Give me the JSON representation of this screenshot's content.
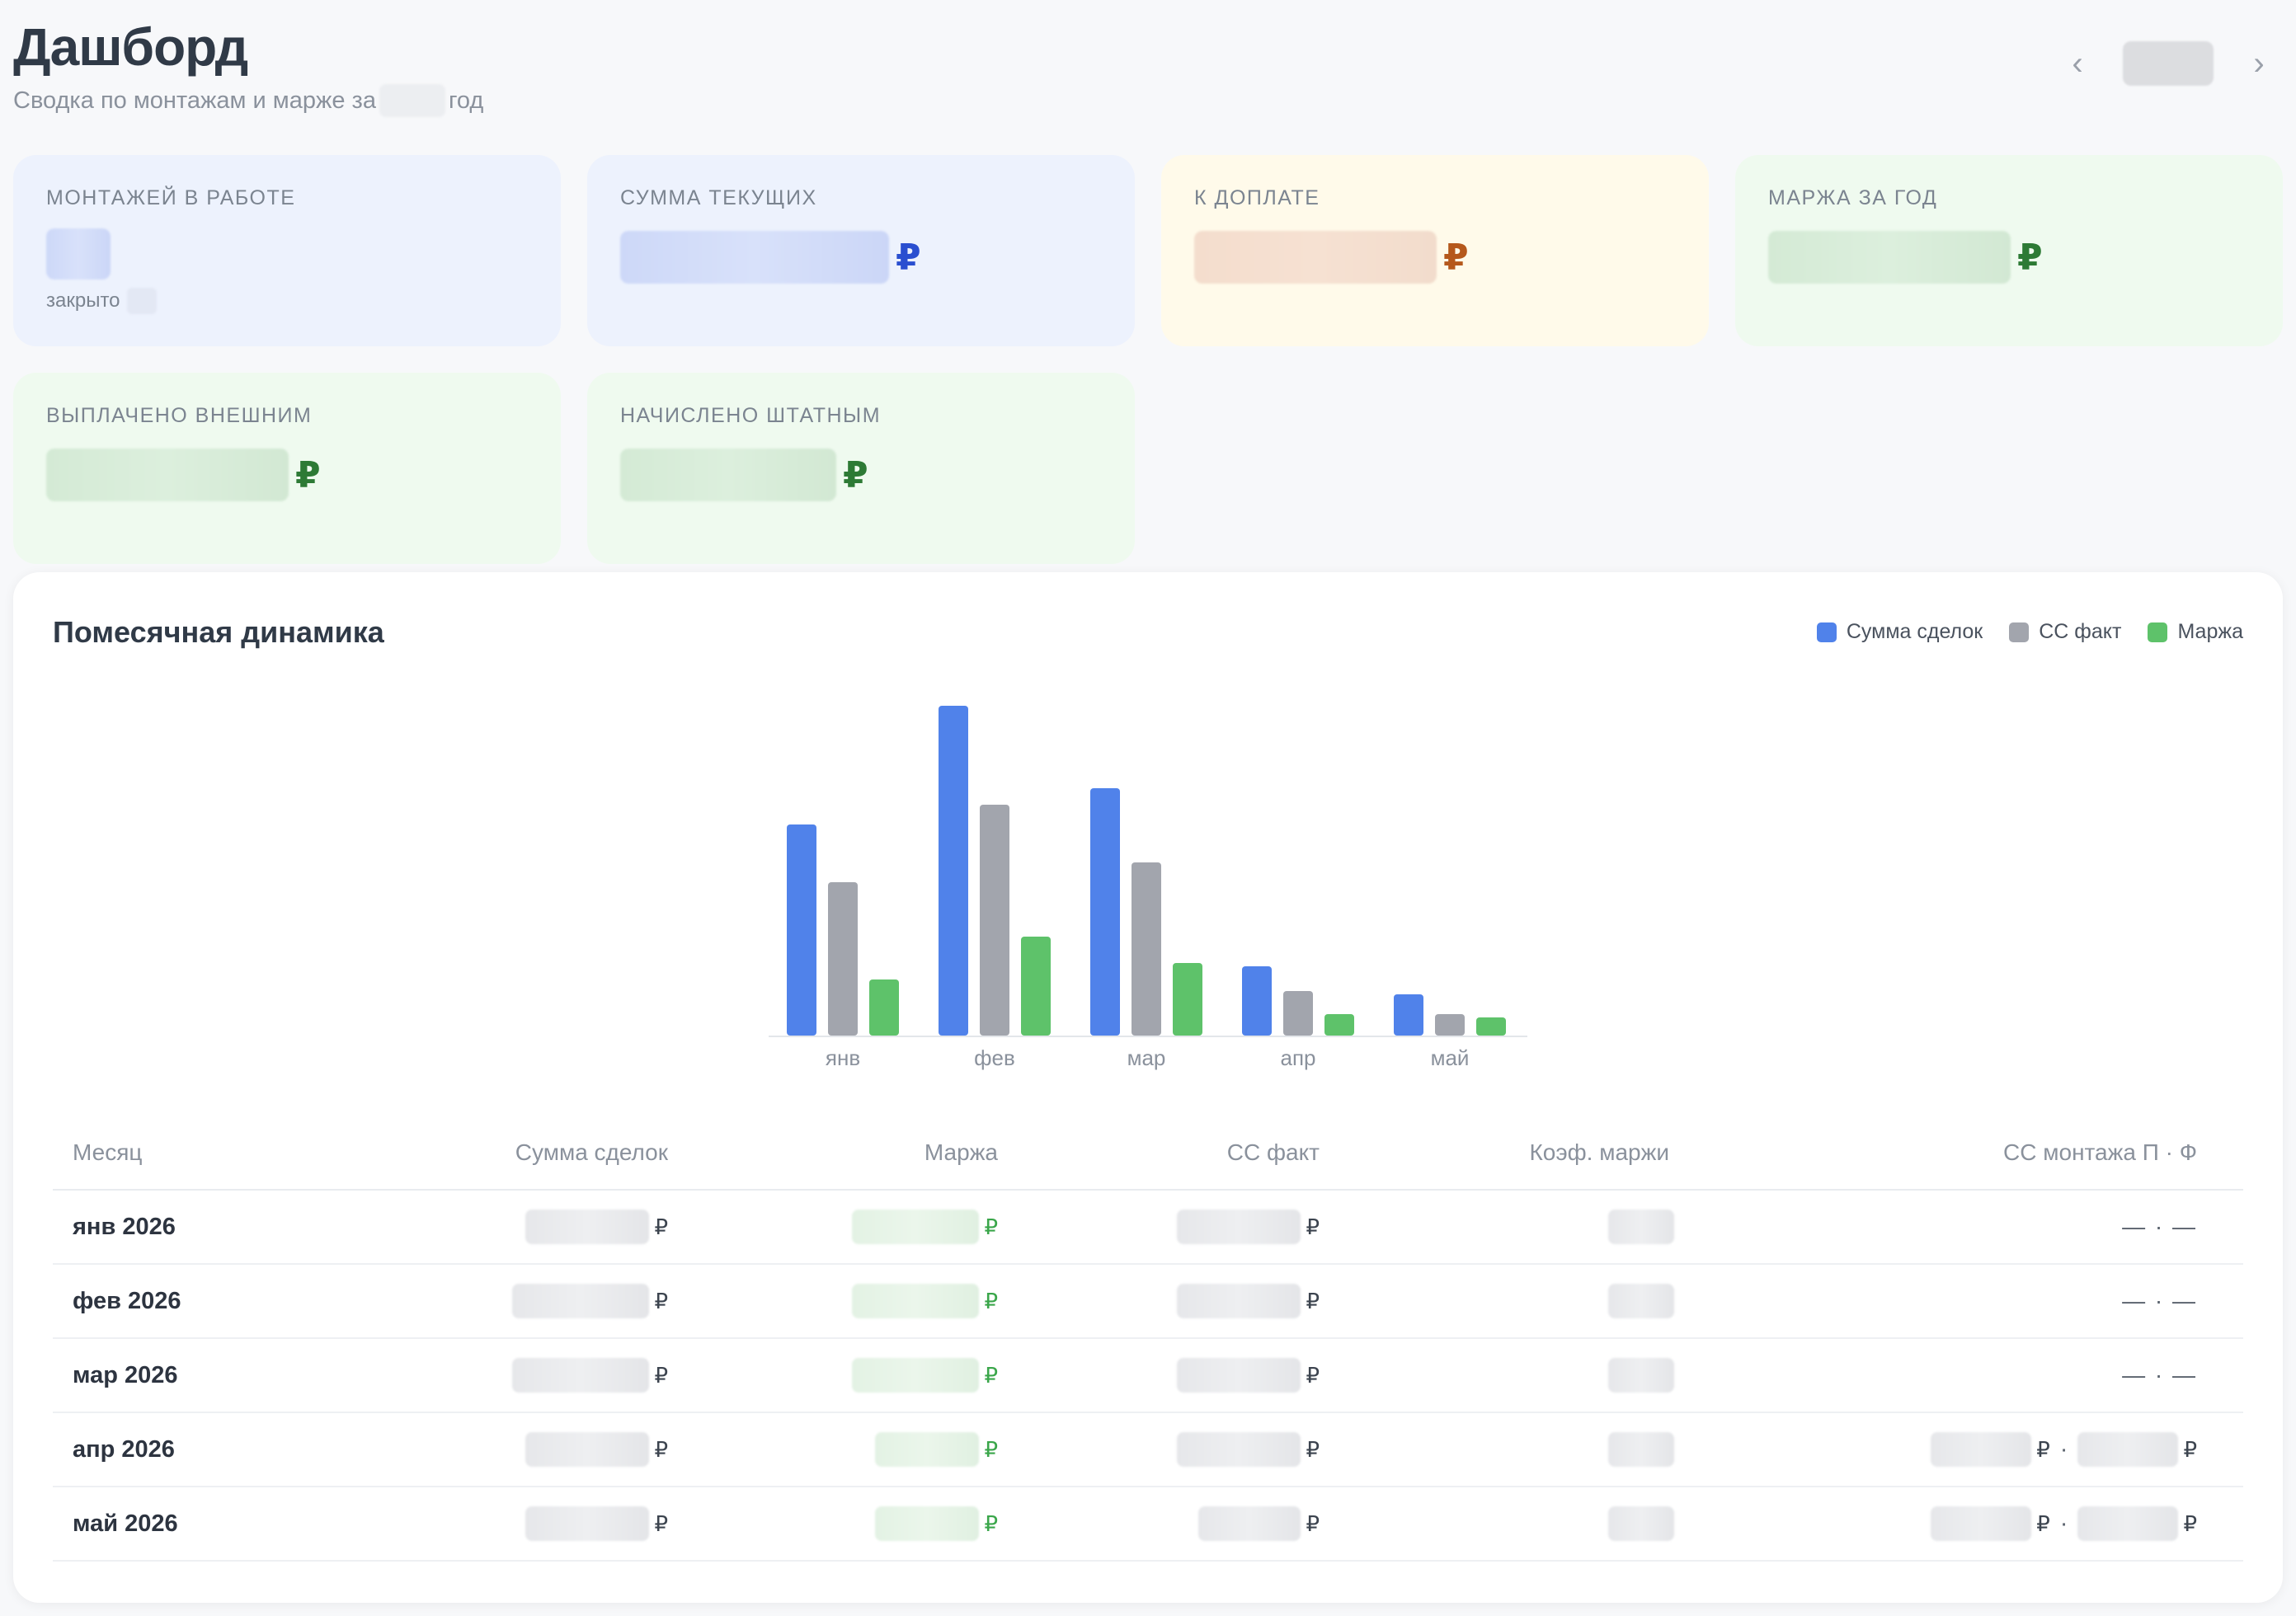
{
  "header": {
    "title": "Дашборд",
    "subtitle_before": "Сводка по монтажам и марже за",
    "subtitle_after": "год",
    "prev_icon": "chevron-left-icon",
    "next_icon": "chevron-right-icon"
  },
  "kpis": [
    {
      "label": "Монтажей в работе",
      "sub_label": "закрыто",
      "tone": "blue"
    },
    {
      "label": "Сумма текущих",
      "currency": "₽",
      "tone": "blue"
    },
    {
      "label": "К доплате",
      "currency": "₽",
      "tone": "yellow"
    },
    {
      "label": "Маржа за год",
      "currency": "₽",
      "tone": "green"
    },
    {
      "label": "Выплачено внешним",
      "currency": "₽",
      "tone": "green"
    },
    {
      "label": "Начислено штатным",
      "currency": "₽",
      "tone": "green"
    }
  ],
  "panel": {
    "title": "Помесячная динамика",
    "legend": [
      {
        "label": "Сумма сделок",
        "color": "#5082ea"
      },
      {
        "label": "СС факт",
        "color": "#a2a5ad"
      },
      {
        "label": "Маржа",
        "color": "#5ec26a"
      }
    ]
  },
  "chart_data": {
    "type": "bar",
    "categories": [
      "янв",
      "фев",
      "мар",
      "апр",
      "май"
    ],
    "series": [
      {
        "name": "Сумма сделок",
        "color": "#5082ea",
        "values": [
          64,
          100,
          75,
          21,
          12.5
        ]
      },
      {
        "name": "СС факт",
        "color": "#a2a5ad",
        "values": [
          46.5,
          70,
          52.5,
          13.5,
          6.5
        ]
      },
      {
        "name": "Маржа",
        "color": "#5ec26a",
        "values": [
          17,
          30,
          22,
          6.5,
          5.5
        ]
      }
    ],
    "ylim": [
      0,
      100
    ],
    "grid": false,
    "legend_position": "top-right"
  },
  "table": {
    "headers": [
      "Месяц",
      "Сумма сделок",
      "Маржа",
      "СС факт",
      "Коэф. маржи",
      "СС монтажа П · Ф"
    ],
    "currency": "₽",
    "separator": "·",
    "rows": [
      {
        "month": "янв 2026",
        "installation": "— · —"
      },
      {
        "month": "фев 2026",
        "installation": "— · —"
      },
      {
        "month": "мар 2026",
        "installation": "— · —"
      },
      {
        "month": "апр 2026",
        "installation": null
      },
      {
        "month": "май 2026",
        "installation": null
      }
    ]
  }
}
